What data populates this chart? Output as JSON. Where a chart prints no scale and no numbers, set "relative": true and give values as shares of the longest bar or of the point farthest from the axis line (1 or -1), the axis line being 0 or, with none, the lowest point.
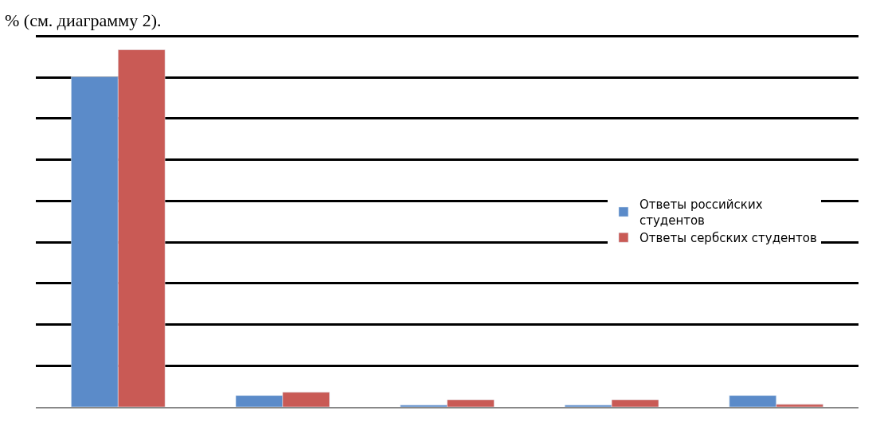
{
  "chart_data": {
    "type": "bar",
    "relative": true,
    "categories": [
      null,
      null,
      null,
      null,
      null
    ],
    "series": [
      {
        "name": "Ответы российских студентов",
        "color": "#5b8bc9",
        "values": [
          0.924,
          0.032,
          0.005,
          0.005,
          0.032
        ]
      },
      {
        "name": "Ответы сербских студентов",
        "color": "#c95a55",
        "values": [
          1,
          0.041,
          0.02,
          0.02,
          0.007
        ]
      }
    ],
    "grid": "y",
    "legend": "right",
    "annotations": [
      "% (см. диаграмму 2)."
    ]
  }
}
